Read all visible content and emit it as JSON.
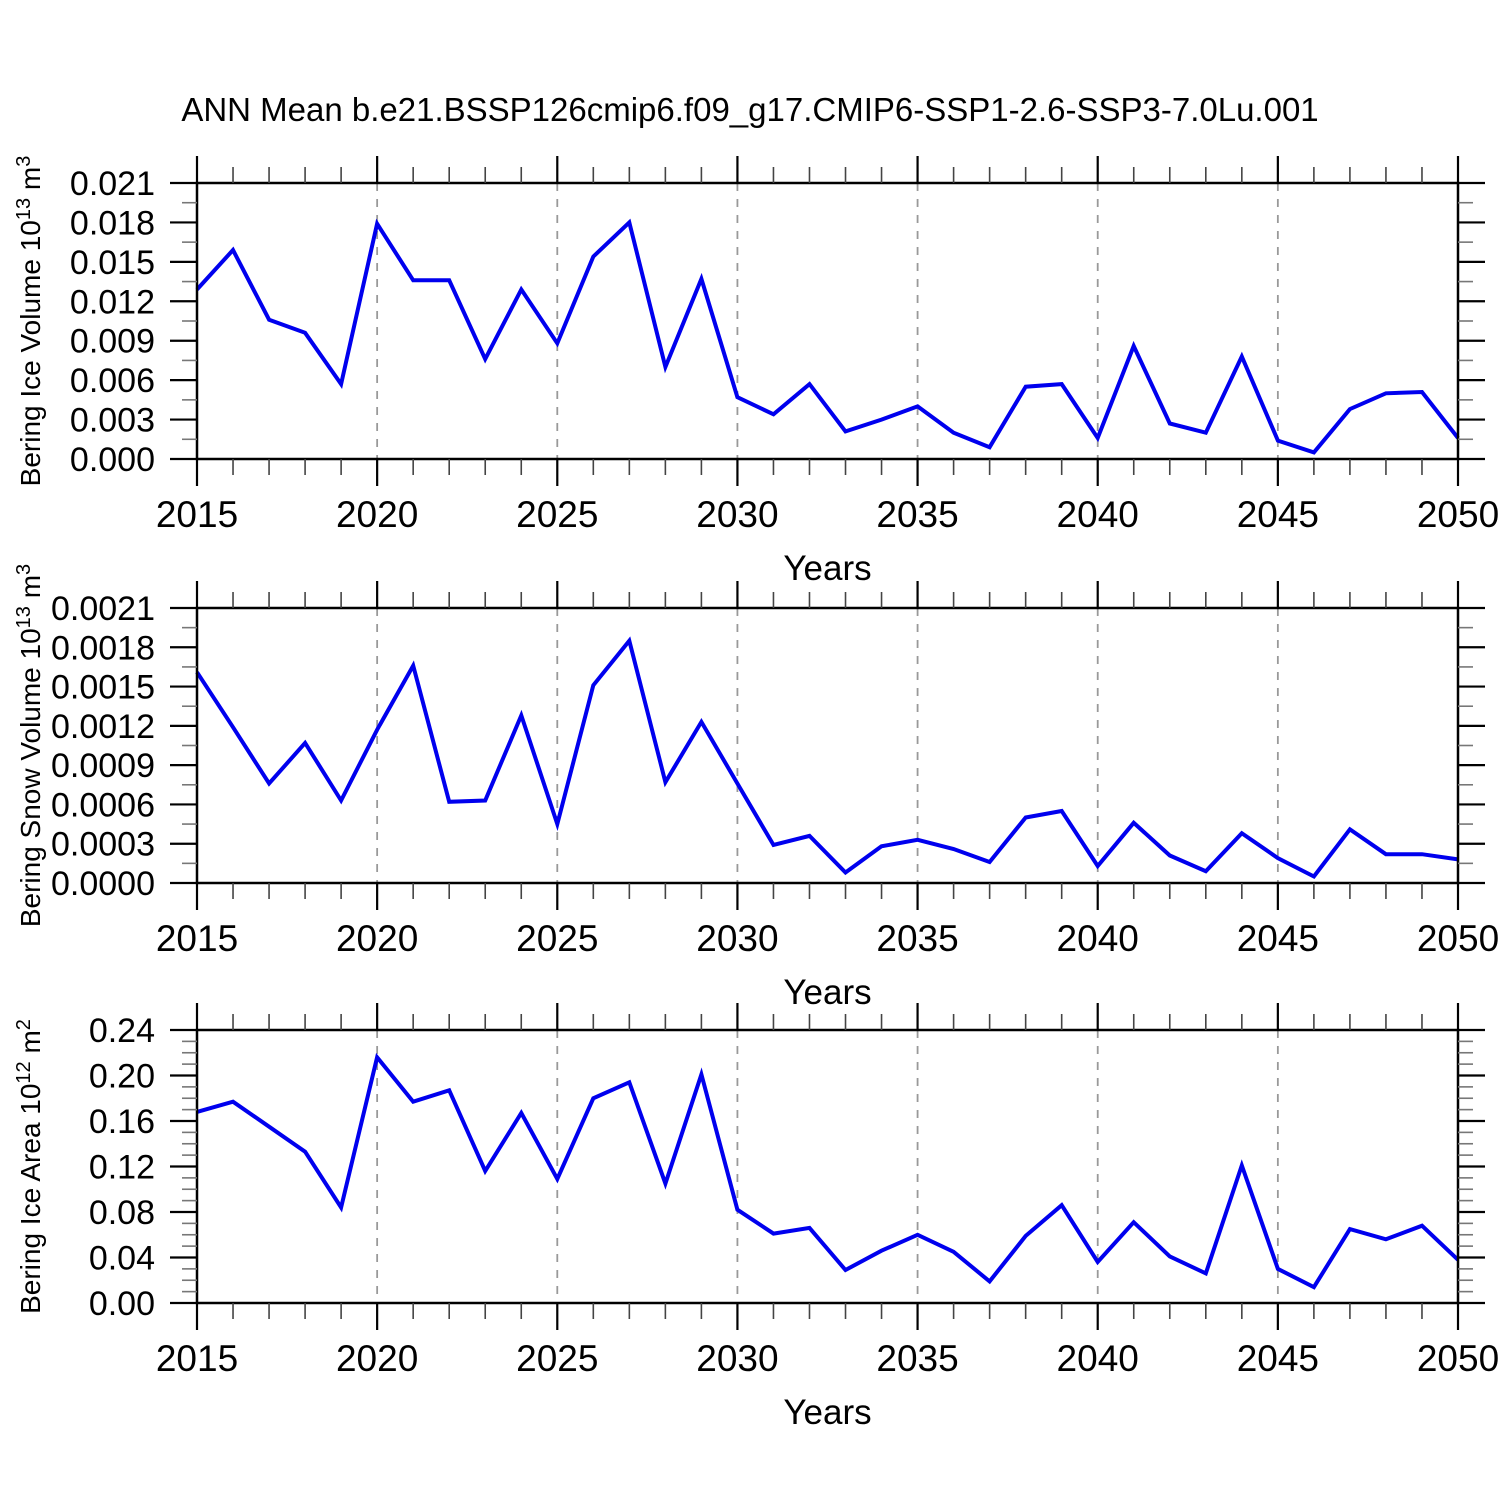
{
  "title": "ANN Mean b.e21.BSSP126cmip6.f09_g17.CMIP6-SSP1-2.6-SSP3-7.0Lu.001",
  "colors": {
    "line": "#0000ee",
    "grid": "#999999",
    "axis": "#000000",
    "minor_tick": "#777777",
    "background": "#ffffff"
  },
  "chart_data": [
    {
      "type": "line",
      "name": "bering-ice-volume",
      "ylabel": "Bering Ice Volume 10¹³ m³",
      "ylabel_parts": [
        {
          "t": "Bering Ice Volume 10"
        },
        {
          "sup": "13"
        },
        {
          "t": " m"
        },
        {
          "sup": "3"
        }
      ],
      "xlabel": "Years",
      "xlim": [
        2015,
        2050
      ],
      "ylim": [
        0,
        0.021
      ],
      "ytick_step": 0.003,
      "y_minor_divisions": 2,
      "x_minor_step": 1,
      "grid_x": [
        2020,
        2025,
        2030,
        2035,
        2040,
        2045
      ],
      "xtick_labels": [
        "2015",
        "2020",
        "2025",
        "2030",
        "2035",
        "2040",
        "2045",
        "2050"
      ],
      "ytick_labels": [
        "0.000",
        "0.003",
        "0.006",
        "0.009",
        "0.012",
        "0.015",
        "0.018",
        "0.021"
      ],
      "x": [
        2015,
        2016,
        2017,
        2018,
        2019,
        2020,
        2021,
        2022,
        2023,
        2024,
        2025,
        2026,
        2027,
        2028,
        2029,
        2030,
        2031,
        2032,
        2033,
        2034,
        2035,
        2036,
        2037,
        2038,
        2039,
        2040,
        2041,
        2042,
        2043,
        2044,
        2045,
        2046,
        2047,
        2048,
        2049,
        2050
      ],
      "values": [
        0.0129,
        0.0159,
        0.0106,
        0.0096,
        0.0057,
        0.0179,
        0.0136,
        0.0136,
        0.0076,
        0.0129,
        0.0088,
        0.0154,
        0.018,
        0.007,
        0.0137,
        0.0047,
        0.0034,
        0.0057,
        0.0021,
        0.003,
        0.004,
        0.002,
        0.0009,
        0.0055,
        0.0057,
        0.0016,
        0.0086,
        0.0027,
        0.002,
        0.0078,
        0.0014,
        0.0005,
        0.0038,
        0.005,
        0.0051,
        0.0016
      ]
    },
    {
      "type": "line",
      "name": "bering-snow-volume",
      "ylabel": "Bering Snow Volume 10¹³ m³",
      "ylabel_parts": [
        {
          "t": "Bering Snow Volume 10"
        },
        {
          "sup": "13"
        },
        {
          "t": " m"
        },
        {
          "sup": "3"
        }
      ],
      "xlabel": "Years",
      "xlim": [
        2015,
        2050
      ],
      "ylim": [
        0,
        0.0021
      ],
      "ytick_step": 0.0003,
      "y_minor_divisions": 2,
      "x_minor_step": 1,
      "grid_x": [
        2020,
        2025,
        2030,
        2035,
        2040,
        2045
      ],
      "xtick_labels": [
        "2015",
        "2020",
        "2025",
        "2030",
        "2035",
        "2040",
        "2045",
        "2050"
      ],
      "ytick_labels": [
        "0.0000",
        "0.0003",
        "0.0006",
        "0.0009",
        "0.0012",
        "0.0015",
        "0.0018",
        "0.0021"
      ],
      "x": [
        2015,
        2016,
        2017,
        2018,
        2019,
        2020,
        2021,
        2022,
        2023,
        2024,
        2025,
        2026,
        2027,
        2028,
        2029,
        2030,
        2031,
        2032,
        2033,
        2034,
        2035,
        2036,
        2037,
        2038,
        2039,
        2040,
        2041,
        2042,
        2043,
        2044,
        2045,
        2046,
        2047,
        2048,
        2049,
        2050
      ],
      "values": [
        0.00161,
        0.00119,
        0.00076,
        0.00107,
        0.00063,
        0.00117,
        0.00166,
        0.00062,
        0.00063,
        0.00128,
        0.00045,
        0.00151,
        0.00185,
        0.00077,
        0.00123,
        0.00076,
        0.00029,
        0.00036,
        8e-05,
        0.00028,
        0.00033,
        0.00026,
        0.00016,
        0.0005,
        0.00055,
        0.00013,
        0.00046,
        0.00021,
        9e-05,
        0.00038,
        0.00019,
        5e-05,
        0.00041,
        0.00022,
        0.00022,
        0.00018
      ]
    },
    {
      "type": "line",
      "name": "bering-ice-area",
      "ylabel": "Bering Ice Area 10¹² m²",
      "ylabel_parts": [
        {
          "t": "Bering Ice Area 10"
        },
        {
          "sup": "12"
        },
        {
          "t": " m"
        },
        {
          "sup": "2"
        }
      ],
      "xlabel": "Years",
      "xlim": [
        2015,
        2050
      ],
      "ylim": [
        0,
        0.24
      ],
      "ytick_step": 0.04,
      "y_minor_divisions": 4,
      "x_minor_step": 1,
      "grid_x": [
        2020,
        2025,
        2030,
        2035,
        2040,
        2045
      ],
      "xtick_labels": [
        "2015",
        "2020",
        "2025",
        "2030",
        "2035",
        "2040",
        "2045",
        "2050"
      ],
      "ytick_labels": [
        "0.00",
        "0.04",
        "0.08",
        "0.12",
        "0.16",
        "0.20",
        "0.24"
      ],
      "x": [
        2015,
        2016,
        2017,
        2018,
        2019,
        2020,
        2021,
        2022,
        2023,
        2024,
        2025,
        2026,
        2027,
        2028,
        2029,
        2030,
        2031,
        2032,
        2033,
        2034,
        2035,
        2036,
        2037,
        2038,
        2039,
        2040,
        2041,
        2042,
        2043,
        2044,
        2045,
        2046,
        2047,
        2048,
        2049,
        2050
      ],
      "values": [
        0.168,
        0.177,
        0.155,
        0.133,
        0.084,
        0.216,
        0.177,
        0.187,
        0.116,
        0.167,
        0.109,
        0.18,
        0.194,
        0.105,
        0.201,
        0.082,
        0.061,
        0.066,
        0.029,
        0.046,
        0.06,
        0.045,
        0.019,
        0.059,
        0.086,
        0.036,
        0.071,
        0.041,
        0.026,
        0.121,
        0.03,
        0.014,
        0.065,
        0.056,
        0.068,
        0.038
      ]
    }
  ]
}
